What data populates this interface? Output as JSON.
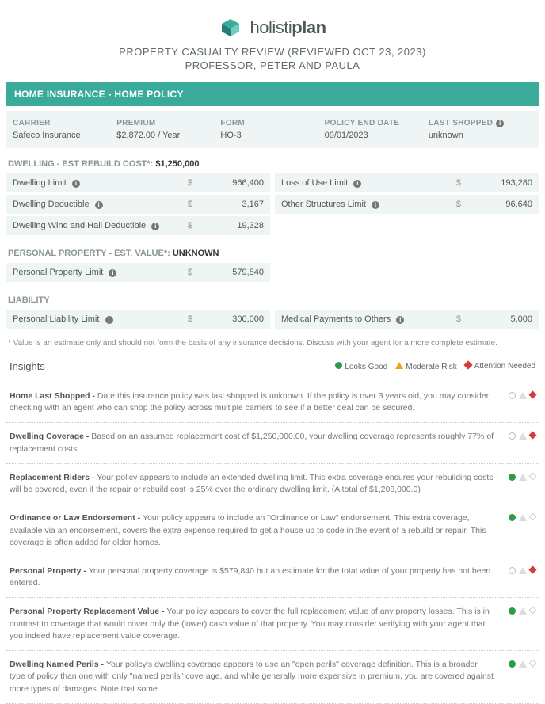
{
  "brand": {
    "name_light": "holisti",
    "name_bold": "plan",
    "logo_colors": [
      "#2a7a7a",
      "#3aab9b",
      "#6fd0c0"
    ]
  },
  "header": {
    "title_line1": "PROPERTY CASUALTY REVIEW (REVIEWED OCT 23, 2023)",
    "title_line2": "PROFESSOR, PETER AND PAULA"
  },
  "section_title": "HOME INSURANCE - HOME POLICY",
  "info": {
    "carrier_label": "CARRIER",
    "carrier_value": "Safeco Insurance",
    "premium_label": "PREMIUM",
    "premium_value": "$2,872.00 / Year",
    "form_label": "FORM",
    "form_value": "HO-3",
    "end_label": "POLICY END DATE",
    "end_value": "09/01/2023",
    "shopped_label": "LAST SHOPPED",
    "shopped_value": "unknown"
  },
  "dwelling": {
    "heading_prefix": "DWELLING - EST REBUILD COST*: ",
    "heading_value": "$1,250,000",
    "left": [
      {
        "label": "Dwelling Limit",
        "value": "966,400"
      },
      {
        "label": "Dwelling Deductible",
        "value": "3,167"
      },
      {
        "label": "Dwelling Wind and Hail Deductible",
        "value": "19,328"
      }
    ],
    "right": [
      {
        "label": "Loss of Use Limit",
        "value": "193,280"
      },
      {
        "label": "Other Structures Limit",
        "value": "96,640"
      }
    ]
  },
  "personal": {
    "heading_prefix": "PERSONAL PROPERTY - EST. VALUE*: ",
    "heading_value": "UNKNOWN",
    "rows": [
      {
        "label": "Personal Property Limit",
        "value": "579,840"
      }
    ]
  },
  "liability": {
    "heading": "LIABILITY",
    "left": [
      {
        "label": "Personal Liability Limit",
        "value": "300,000"
      }
    ],
    "right": [
      {
        "label": "Medical Payments to Others",
        "value": "5,000"
      }
    ]
  },
  "footnote": "* Value is an estimate only and should not form the basis of any insurance decisions. Discuss with your agent for a more complete estimate.",
  "insights_header": {
    "title": "Insights",
    "legend_good": "Looks Good",
    "legend_mod": "Moderate Risk",
    "legend_att": "Attention Needed"
  },
  "insights": [
    {
      "bold": "Home Last Shopped - ",
      "text": "Date this insurance policy was last shopped is unknown. If the policy is over 3 years old, you may consider checking with an agent who can shop the policy across multiple carriers to see if a better deal can be secured.",
      "status": "attention"
    },
    {
      "bold": "Dwelling Coverage - ",
      "text": "Based on an assumed replacement cost of $1,250,000.00, your dwelling coverage represents roughly 77% of replacement costs.",
      "status": "attention"
    },
    {
      "bold": "Replacement Riders - ",
      "text": "Your policy appears to include an extended dwelling limit. This extra coverage ensures your rebuilding costs will be covered, even if the repair or rebuild cost is 25% over the ordinary dwelling limit. (A total of $1,208,000.0)",
      "status": "good"
    },
    {
      "bold": "Ordinance or Law Endorsement - ",
      "text": "Your policy appears to include an \"Ordinance or Law\" endorsement. This extra coverage, available via an endorsement, covers the extra expense required to get a house up to code in the event of a rebuild or repair. This coverage is often added for older homes.",
      "status": "good"
    },
    {
      "bold": "Personal Property - ",
      "text": "Your personal property coverage is $579,840 but an estimate for the total value of your property has not been entered.",
      "status": "attention"
    },
    {
      "bold": "Personal Property Replacement Value - ",
      "text": "Your policy appears to cover the full replacement value of any property losses. This is in contrast to coverage that would cover only the (lower) cash value of that property. You may consider verifying with your agent that you indeed have replacement value coverage.",
      "status": "good"
    },
    {
      "bold": "Dwelling Named Perils - ",
      "text": "Your policy's dwelling coverage appears to use an \"open perils\" coverage definition. This is a broader type of policy than one with only \"named perils\" coverage, and while generally more expensive in premium, you are covered against more types of damages. Note that some",
      "status": "good"
    }
  ],
  "colors": {
    "accent": "#3aab9b",
    "row_bg": "#eef5f4",
    "good": "#2a9d4a",
    "moderate": "#e6a817",
    "attention": "#d43b3b"
  }
}
